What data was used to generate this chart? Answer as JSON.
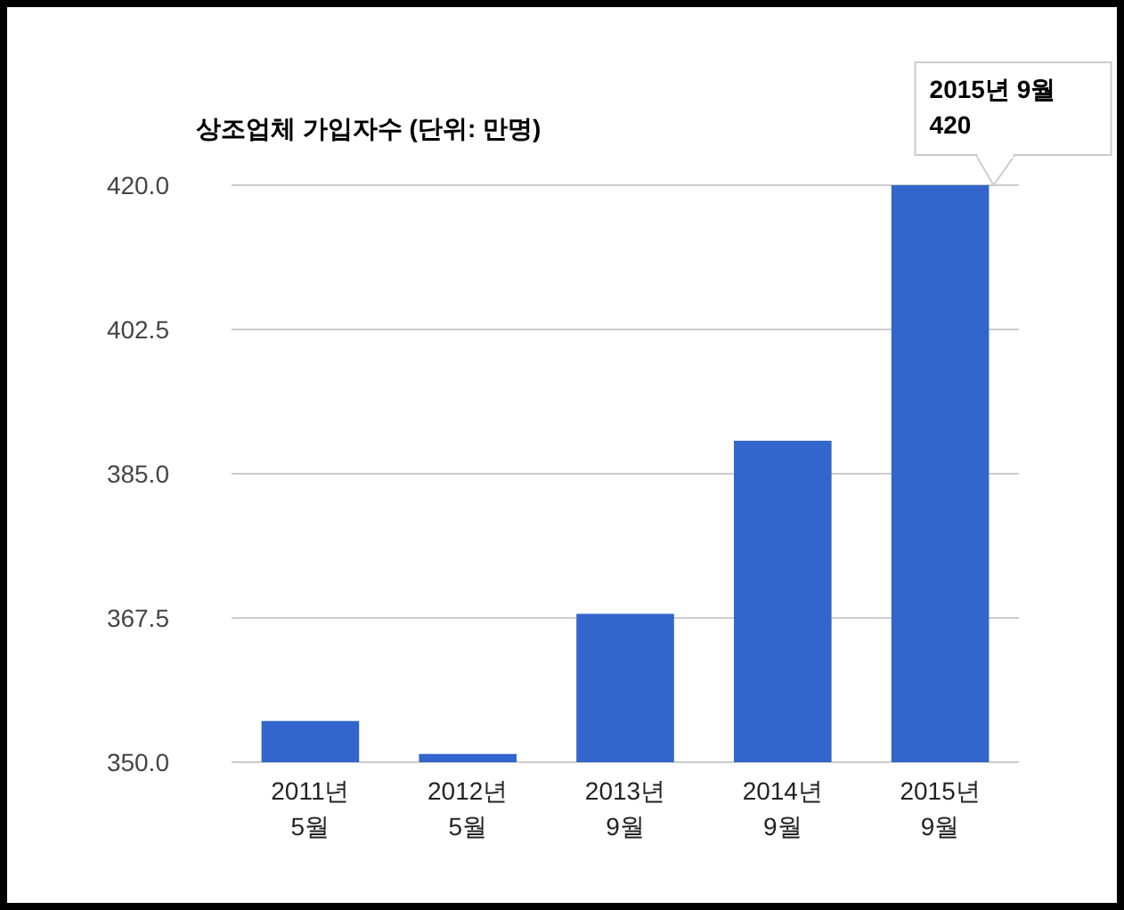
{
  "chart_data": {
    "type": "bar",
    "title": "상조업체 가입자수 (단위: 만명)",
    "categories": [
      "2011년 5월",
      "2012년 5월",
      "2013년 9월",
      "2014년 9월",
      "2015년 9월"
    ],
    "values": [
      355,
      351,
      368,
      389,
      420
    ],
    "color": "#3366cc",
    "ylim": [
      350,
      420
    ],
    "yticks": [
      {
        "value": 350,
        "label": "350.0"
      },
      {
        "value": 367.5,
        "label": "367.5"
      },
      {
        "value": 385,
        "label": "385.0"
      },
      {
        "value": 402.5,
        "label": "402.5"
      },
      {
        "value": 420,
        "label": "420.0"
      }
    ],
    "grid": "y",
    "annotations": [
      {
        "text": "2015년 9월\n420",
        "x": "2015년 9월",
        "y": 420
      }
    ]
  }
}
